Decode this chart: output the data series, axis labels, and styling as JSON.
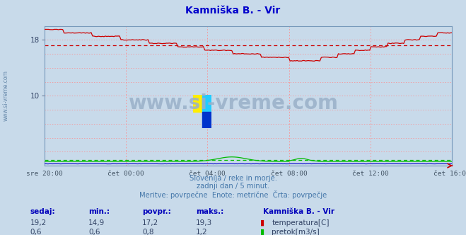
{
  "title": "Kamniška B. - Vir",
  "title_color": "#0000cc",
  "bg_color": "#c8daea",
  "plot_bg_color": "#c8daea",
  "grid_color": "#ff8888",
  "x_labels": [
    "sre 20:00",
    "čet 00:00",
    "čet 04:00",
    "čet 08:00",
    "čet 12:00",
    "čet 16:00"
  ],
  "x_ticks_norm": [
    0.0,
    0.2,
    0.4,
    0.6,
    0.8,
    1.0
  ],
  "ylim": [
    0,
    20
  ],
  "ytick_vals": [
    10,
    18
  ],
  "temp_color": "#cc0000",
  "flow_color": "#00bb00",
  "height_color": "#0000cc",
  "avg_temp": 17.2,
  "avg_flow": 0.8,
  "watermark": "www.si-vreme.com",
  "watermark_color": "#9ab0c8",
  "sub_line1": "Slovenija / reke in morje.",
  "sub_line2": "zadnji dan / 5 minut.",
  "sub_line3": "Meritve: povrpečne  Enote: metrične  Črta: povrpečje",
  "sub_color": "#4477aa",
  "table_headers": [
    "sedaj:",
    "min.:",
    "povpr.:",
    "maks.:"
  ],
  "table_header_color": "#0000bb",
  "station_name": "Kamniška B. - Vir",
  "temp_row": [
    "19,2",
    "14,9",
    "17,2",
    "19,3"
  ],
  "flow_row": [
    "0,6",
    "0,6",
    "0,8",
    "1,2"
  ],
  "table_data_color": "#334466",
  "legend_temp": "temperatura[C]",
  "legend_flow": "pretok[m3/s]",
  "n_points": 288,
  "left_label": "www.si-vreme.com",
  "left_label_color": "#6688aa",
  "logo_colors": [
    "#ffee00",
    "#00ccff",
    "#0033cc",
    "#22aaff"
  ]
}
